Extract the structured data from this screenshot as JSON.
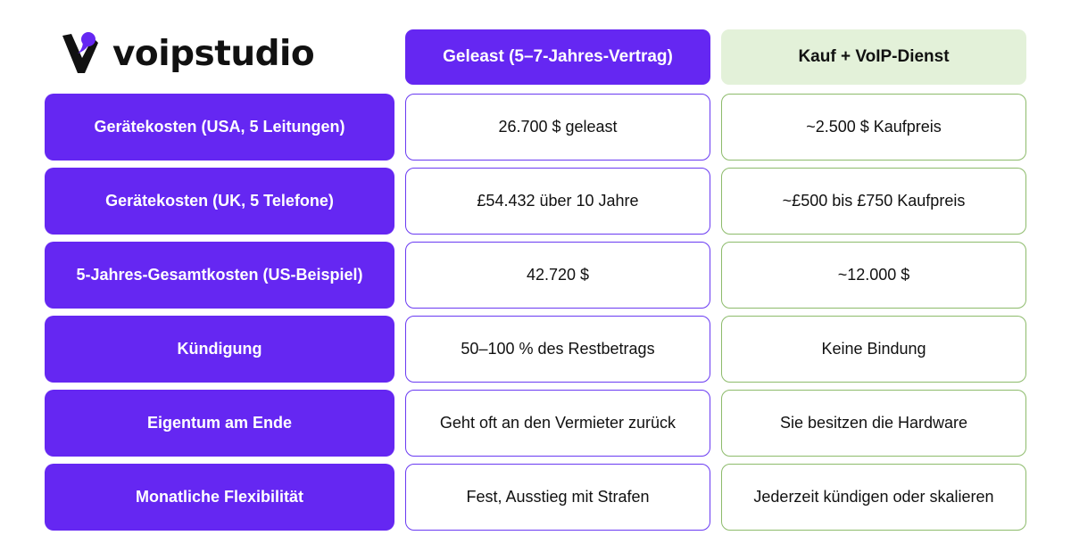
{
  "brand": {
    "name": "voipstudio",
    "logo_icon": "voipstudio-logo-icon",
    "accent_color": "#6527f2",
    "secondary_color": "#e3f1d9"
  },
  "headers": {
    "leased": "Geleast (5–7-Jahres-Vertrag)",
    "purchase": "Kauf + VoIP-Dienst"
  },
  "rows": [
    {
      "label": "Gerätekosten (USA, 5 Leitungen)",
      "leased": "26.700 $ geleast",
      "purchase": "~2.500 $ Kaufpreis"
    },
    {
      "label": "Gerätekosten (UK, 5 Telefone)",
      "leased": "£54.432 über 10 Jahre",
      "purchase": "~£500 bis £750 Kaufpreis"
    },
    {
      "label": "5-Jahres-Gesamtkosten (US-Beispiel)",
      "leased": "42.720 $",
      "purchase": "~12.000 $"
    },
    {
      "label": "Kündigung",
      "leased": "50–100 % des Restbetrags",
      "purchase": "Keine Bindung"
    },
    {
      "label": "Eigentum am Ende",
      "leased": "Geht oft an den Vermieter zurück",
      "purchase": "Sie besitzen die Hardware"
    },
    {
      "label": "Monatliche Flexibilität",
      "leased": "Fest, Ausstieg mit Strafen",
      "purchase": "Jederzeit kündigen oder skalieren"
    }
  ]
}
